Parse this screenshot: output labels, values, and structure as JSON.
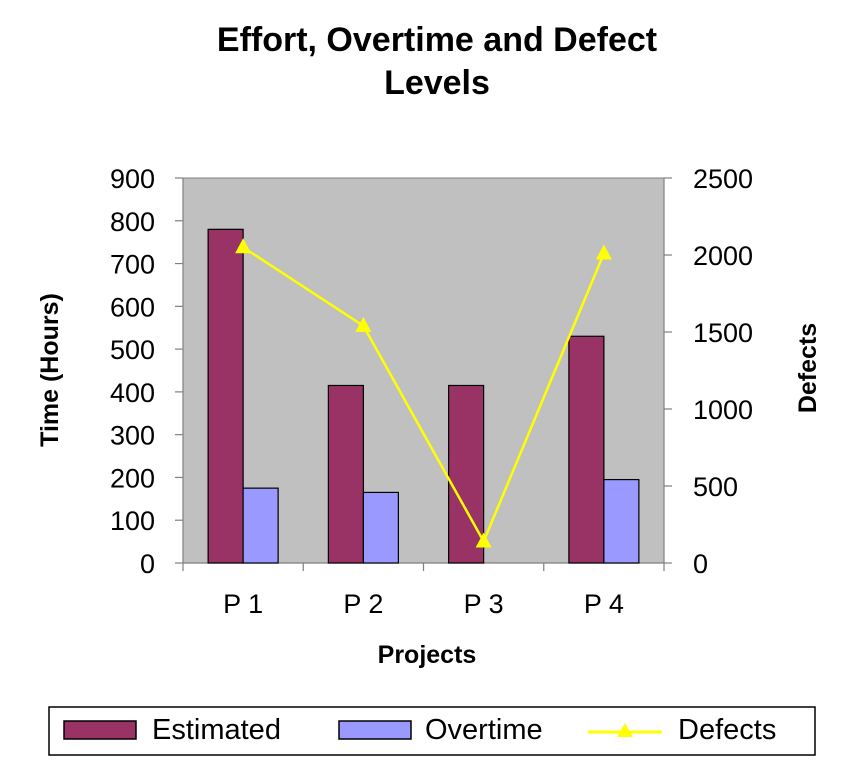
{
  "chart_data": {
    "type": "bar",
    "title_lines": [
      "Effort, Overtime and Defect",
      "Levels"
    ],
    "xlabel": "Projects",
    "ylabel": "Time (Hours)",
    "y2label": "Defects",
    "categories": [
      "P 1",
      "P 2",
      "P 3",
      "P 4"
    ],
    "ylim": [
      0,
      900
    ],
    "y_ticks": [
      0,
      100,
      200,
      300,
      400,
      500,
      600,
      700,
      800,
      900
    ],
    "y2lim": [
      0,
      2500
    ],
    "y2_ticks": [
      0,
      500,
      1000,
      1500,
      2000,
      2500
    ],
    "series": [
      {
        "name": "Estimated",
        "type": "bar",
        "axis": "left",
        "color": "#993366",
        "values": [
          780,
          415,
          415,
          530
        ]
      },
      {
        "name": "Overtime",
        "type": "bar",
        "axis": "left",
        "color": "#9999FF",
        "values": [
          175,
          165,
          0,
          195
        ]
      },
      {
        "name": "Defects",
        "type": "line",
        "axis": "right",
        "color": "#FFFF00",
        "marker": "triangle",
        "values": [
          2050,
          1540,
          140,
          2010
        ]
      }
    ],
    "plot_background": "#C0C0C0",
    "grid": false,
    "legend_position": "bottom"
  }
}
